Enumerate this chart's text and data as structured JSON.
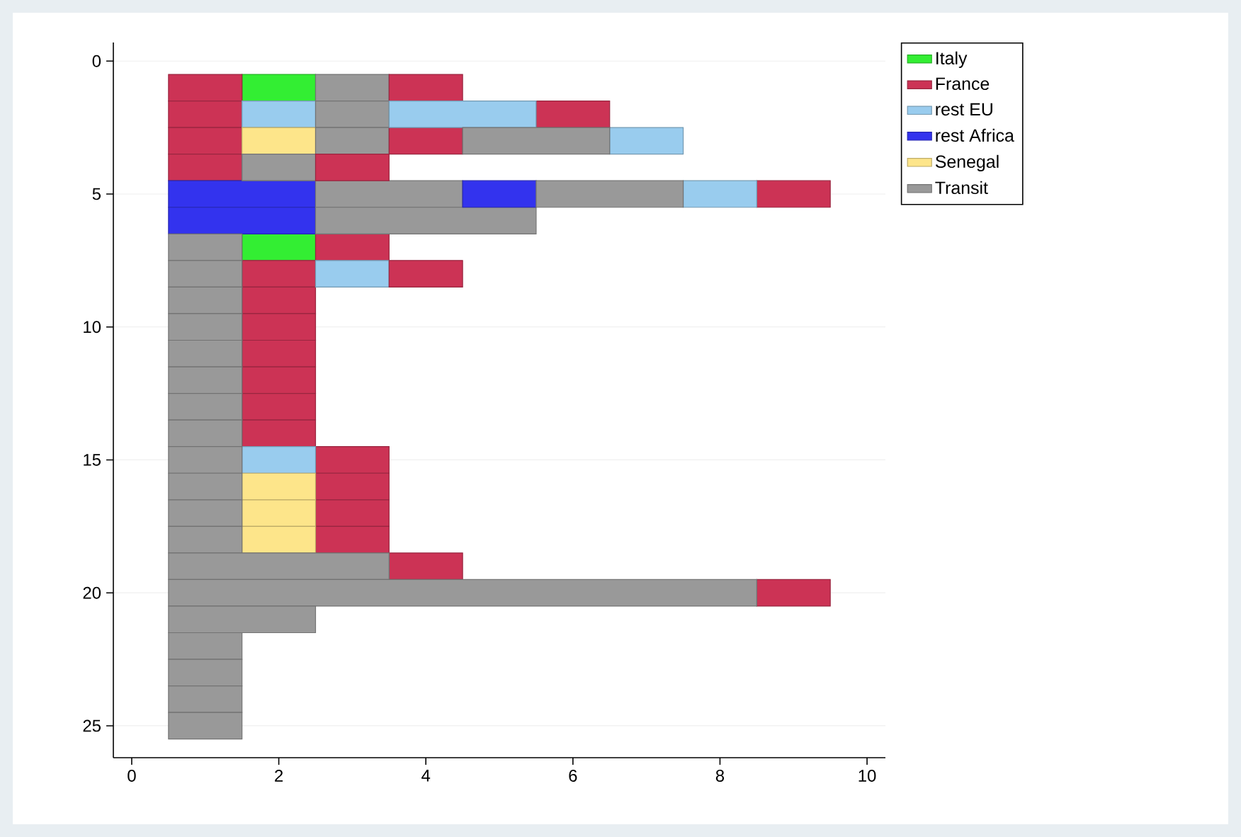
{
  "chart_data": {
    "type": "bar",
    "orientation": "horizontal",
    "xlim": [
      -0.25,
      10.25
    ],
    "xticks": [
      0,
      2,
      4,
      6,
      8,
      10
    ],
    "ylim": [
      26.2,
      -0.7
    ],
    "yticks": [
      0,
      5,
      10,
      15,
      20,
      25
    ],
    "grid": "y",
    "legend": "right",
    "series": [
      {
        "name": "Italy",
        "color": "#33ee33",
        "x": [
          1,
          7
        ],
        "base": [
          1.5,
          1.5
        ],
        "values": [
          1,
          1
        ]
      },
      {
        "name": "France",
        "color": "#cc3355",
        "x": [
          1,
          2,
          3,
          4,
          5,
          7,
          8,
          9,
          10,
          11,
          12,
          13,
          14,
          15,
          16,
          17,
          18,
          19,
          20
        ],
        "base": [
          0.5,
          0.5,
          0.5,
          0.5,
          8.5,
          2.5,
          1.5,
          1.5,
          1.5,
          1.5,
          1.5,
          1.5,
          1.5,
          2.5,
          2.5,
          2.5,
          2.5,
          3.5,
          8.5
        ],
        "values": [
          1,
          1,
          1,
          1,
          1,
          1,
          1,
          1,
          1,
          1,
          1,
          1,
          1,
          1,
          1,
          1,
          1,
          1,
          1
        ]
      },
      {
        "name": "rest EU",
        "color": "#99ccee",
        "x": [
          2,
          3,
          5,
          8,
          15
        ],
        "base": [
          1.5,
          6.5,
          7.5,
          2.5,
          1.5
        ],
        "values": [
          1,
          1,
          1,
          1,
          1
        ]
      },
      {
        "name": "rest Africa",
        "color": "#3333ee",
        "x": [
          5,
          6
        ],
        "base": [
          0.5,
          0.5
        ],
        "values": [
          2,
          2
        ]
      },
      {
        "name": "Senegal",
        "color": "#fde58a",
        "x": [
          3,
          16,
          17,
          18
        ],
        "base": [
          1.5,
          1.5,
          1.5,
          1.5
        ],
        "values": [
          1,
          1,
          1,
          1
        ]
      },
      {
        "name": "Transit",
        "color": "#999999",
        "x": [
          1,
          2,
          3,
          4,
          5,
          6,
          7,
          8,
          9,
          10,
          11,
          12,
          13,
          14,
          15,
          16,
          17,
          18,
          19,
          20,
          21,
          22,
          23,
          24,
          25
        ],
        "base": [
          2.5,
          2.5,
          2.5,
          1.5,
          2.5,
          2.5,
          0.5,
          0.5,
          0.5,
          0.5,
          0.5,
          0.5,
          0.5,
          0.5,
          0.5,
          0.5,
          0.5,
          0.5,
          0.5,
          0.5,
          0.5,
          0.5,
          0.5,
          0.5,
          0.5
        ],
        "values": [
          1,
          1,
          1,
          1,
          2,
          3,
          1,
          1,
          1,
          1,
          1,
          1,
          1,
          1,
          1,
          1,
          1,
          1,
          3,
          8,
          2,
          1,
          1,
          1,
          1
        ]
      },
      {
        "color": "#cc3355",
        "x": [
          1,
          2,
          3,
          4,
          8
        ],
        "base": [
          3.5,
          5.5,
          3.5,
          2.5,
          3.5
        ],
        "values": [
          1,
          1,
          1,
          1,
          1
        ]
      },
      {
        "color": "#99ccee",
        "x": [
          2
        ],
        "base": [
          3.5
        ],
        "values": [
          2
        ]
      },
      {
        "color": "#3333ee",
        "x": [
          5
        ],
        "base": [
          4.5
        ],
        "values": [
          1
        ]
      },
      {
        "color": "#999999",
        "x": [
          3,
          5
        ],
        "base": [
          4.5,
          5.5
        ],
        "values": [
          2,
          2
        ]
      }
    ]
  }
}
